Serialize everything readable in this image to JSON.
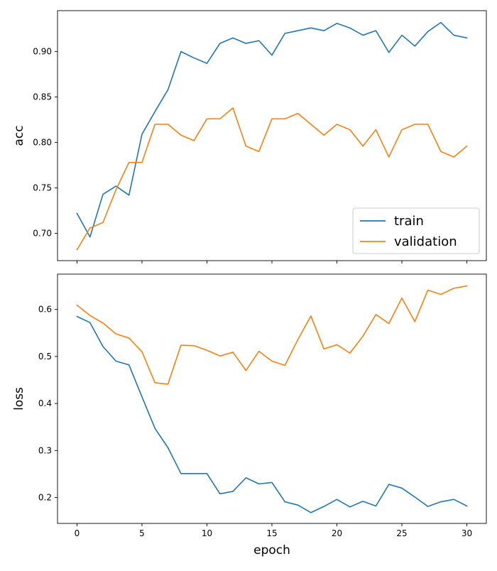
{
  "colors": {
    "train": "#1f77b4",
    "validation": "#ff7f0e",
    "axes": "#000000",
    "background": "#ffffff"
  },
  "chart_data": [
    {
      "type": "line",
      "ylabel": "acc",
      "xlabel": "",
      "xlim": [
        -1.5,
        31.5
      ],
      "ylim": [
        0.67,
        0.945
      ],
      "xticks": [
        0,
        5,
        10,
        15,
        20,
        25,
        30
      ],
      "xtick_labels_visible": false,
      "yticks": [
        0.7,
        0.75,
        0.8,
        0.85,
        0.9
      ],
      "ytick_labels": [
        "0.70",
        "0.75",
        "0.80",
        "0.85",
        "0.90"
      ],
      "grid": false,
      "legend": {
        "placement": "lower-right",
        "entries": [
          "train",
          "validation"
        ]
      },
      "x": [
        0,
        1,
        2,
        3,
        4,
        5,
        6,
        7,
        8,
        9,
        10,
        11,
        12,
        13,
        14,
        15,
        16,
        17,
        18,
        19,
        20,
        21,
        22,
        23,
        24,
        25,
        26,
        27,
        28,
        29,
        30
      ],
      "series": [
        {
          "name": "train",
          "color": "#1f77b4",
          "values": [
            0.722,
            0.696,
            0.743,
            0.752,
            0.742,
            0.809,
            0.834,
            0.858,
            0.9,
            0.893,
            0.887,
            0.909,
            0.915,
            0.909,
            0.912,
            0.896,
            0.92,
            0.923,
            0.926,
            0.923,
            0.931,
            0.926,
            0.918,
            0.923,
            0.899,
            0.918,
            0.906,
            0.922,
            0.932,
            0.918,
            0.915
          ]
        },
        {
          "name": "validation",
          "color": "#ff7f0e",
          "values": [
            0.682,
            0.706,
            0.712,
            0.748,
            0.778,
            0.778,
            0.82,
            0.82,
            0.808,
            0.802,
            0.826,
            0.826,
            0.838,
            0.796,
            0.79,
            0.826,
            0.826,
            0.832,
            0.82,
            0.808,
            0.82,
            0.814,
            0.796,
            0.814,
            0.784,
            0.814,
            0.82,
            0.82,
            0.79,
            0.784,
            0.796
          ]
        }
      ]
    },
    {
      "type": "line",
      "ylabel": "loss",
      "xlabel": "epoch",
      "xlim": [
        -1.5,
        31.5
      ],
      "ylim": [
        0.145,
        0.675
      ],
      "xticks": [
        0,
        5,
        10,
        15,
        20,
        25,
        30
      ],
      "xtick_labels": [
        "0",
        "5",
        "10",
        "15",
        "20",
        "25",
        "30"
      ],
      "xtick_labels_visible": true,
      "yticks": [
        0.2,
        0.3,
        0.4,
        0.5,
        0.6
      ],
      "ytick_labels": [
        "0.2",
        "0.3",
        "0.4",
        "0.5",
        "0.6"
      ],
      "grid": false,
      "legend": null,
      "x": [
        0,
        1,
        2,
        3,
        4,
        5,
        6,
        7,
        8,
        9,
        10,
        11,
        12,
        13,
        14,
        15,
        16,
        17,
        18,
        19,
        20,
        21,
        22,
        23,
        24,
        25,
        26,
        27,
        28,
        29,
        30
      ],
      "series": [
        {
          "name": "train",
          "color": "#1f77b4",
          "values": [
            0.585,
            0.572,
            0.521,
            0.49,
            0.482,
            0.414,
            0.347,
            0.306,
            0.251,
            0.251,
            0.251,
            0.208,
            0.213,
            0.242,
            0.229,
            0.232,
            0.191,
            0.184,
            0.168,
            0.181,
            0.196,
            0.18,
            0.192,
            0.182,
            0.228,
            0.22,
            0.201,
            0.181,
            0.191,
            0.196,
            0.182
          ]
        },
        {
          "name": "validation",
          "color": "#ff7f0e",
          "values": [
            0.609,
            0.587,
            0.571,
            0.548,
            0.539,
            0.51,
            0.444,
            0.441,
            0.524,
            0.523,
            0.513,
            0.501,
            0.509,
            0.47,
            0.511,
            0.49,
            0.481,
            0.536,
            0.586,
            0.516,
            0.525,
            0.507,
            0.543,
            0.589,
            0.57,
            0.624,
            0.574,
            0.641,
            0.632,
            0.645,
            0.65
          ]
        }
      ]
    }
  ]
}
